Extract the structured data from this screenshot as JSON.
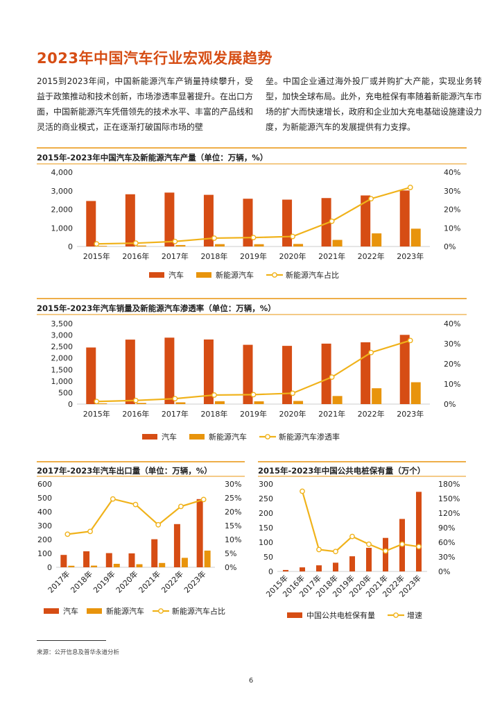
{
  "page": {
    "title": "2023年中国汽车行业宏观发展趋势",
    "intro_left": "2015到2023年间，中国新能源汽车产销量持续攀升，受益于政策推动和技术创新，市场渗透率显著提升。在出口方面，中国新能源汽车凭借领先的技术水平、丰富的产品线和灵活的商业模式，正在逐渐打破国际市场的壁",
    "intro_right": "垒。中国企业通过海外投厂或并购扩大产能，实现业务转型，加快全球布局。此外，充电桩保有率随着新能源汽车市场的扩大而快速增长，政府和企业加大充电基础设施建设力度，为新能源汽车的发展提供有力支撑。",
    "source": "来源：公开信息及普华永道分析",
    "page_number": "6"
  },
  "colors": {
    "bar_primary": "#d64d14",
    "bar_secondary": "#e8940c",
    "line": "#f0b21a",
    "accent_rule": "#e8940c"
  },
  "chart_data": [
    {
      "id": "chart1",
      "type": "bar",
      "title": "2015年-2023年中国汽车及新能源汽车产量（单位：万辆，%）",
      "categories": [
        "2015年",
        "2016年",
        "2017年",
        "2018年",
        "2019年",
        "2020年",
        "2021年",
        "2022年",
        "2023年"
      ],
      "y_ticks": [
        "4,000",
        "3,000",
        "2,000",
        "1,000",
        "0"
      ],
      "y2_ticks": [
        "40%",
        "30%",
        "20%",
        "10%",
        "0%"
      ],
      "ylim": [
        0,
        4000
      ],
      "y2lim": [
        0,
        40
      ],
      "series": [
        {
          "name": "汽车",
          "kind": "bar",
          "values": [
            2450,
            2812,
            2902,
            2781,
            2572,
            2523,
            2608,
            2748,
            3016
          ]
        },
        {
          "name": "新能源汽车",
          "kind": "bar",
          "values": [
            34,
            52,
            79,
            127,
            124,
            137,
            355,
            706,
            959
          ]
        },
        {
          "name": "新能源汽车占比",
          "kind": "line",
          "axis": "right",
          "values": [
            1.4,
            1.8,
            2.7,
            4.5,
            4.8,
            5.4,
            13.6,
            25.7,
            31.8
          ]
        }
      ],
      "legend": "bottom",
      "grid": false
    },
    {
      "id": "chart2",
      "type": "bar",
      "title": "2015年-2023年汽车销量及新能源汽车渗透率（单位：万辆，%）",
      "categories": [
        "2015年",
        "2016年",
        "2017年",
        "2018年",
        "2019年",
        "2020年",
        "2021年",
        "2022年",
        "2023年"
      ],
      "y_ticks": [
        "3,500",
        "3,000",
        "2,500",
        "2,000",
        "1,500",
        "1,000",
        "500",
        "0"
      ],
      "y2_ticks": [
        "40%",
        "30%",
        "20%",
        "10%",
        "0%"
      ],
      "ylim": [
        0,
        3500
      ],
      "y2lim": [
        0,
        40
      ],
      "series": [
        {
          "name": "汽车",
          "kind": "bar",
          "values": [
            2460,
            2803,
            2888,
            2808,
            2577,
            2531,
            2628,
            2686,
            3009
          ]
        },
        {
          "name": "新能源汽车",
          "kind": "bar",
          "values": [
            33,
            51,
            77,
            126,
            121,
            137,
            352,
            689,
            950
          ]
        },
        {
          "name": "新能源汽车渗透率",
          "kind": "line",
          "axis": "right",
          "values": [
            1.3,
            1.8,
            2.7,
            4.5,
            4.7,
            5.4,
            13.4,
            25.6,
            31.6
          ]
        }
      ],
      "legend": "bottom",
      "grid": false
    },
    {
      "id": "chart3",
      "type": "bar",
      "title": "2017年-2023年汽车出口量（单位：万辆，%）",
      "categories": [
        "2017年",
        "2018年",
        "2019年",
        "2020年",
        "2021年",
        "2022年",
        "2023年"
      ],
      "y_ticks": [
        "600",
        "500",
        "400",
        "300",
        "200",
        "100",
        "0"
      ],
      "y2_ticks": [
        "30%",
        "25%",
        "20%",
        "15%",
        "10%",
        "5%",
        "0%"
      ],
      "ylim": [
        0,
        600
      ],
      "y2lim": [
        0,
        30
      ],
      "series": [
        {
          "name": "汽车",
          "kind": "bar",
          "values": [
            89,
            115,
            102,
            100,
            202,
            311,
            491
          ]
        },
        {
          "name": "新能源汽车",
          "kind": "bar",
          "values": [
            11,
            12,
            25,
            22,
            31,
            68,
            120
          ]
        },
        {
          "name": "新能源汽车占比",
          "kind": "line",
          "axis": "right",
          "values": [
            11.9,
            12.9,
            24.6,
            22.6,
            15.3,
            21.9,
            24.4
          ]
        }
      ],
      "legend": "bottom",
      "grid": false
    },
    {
      "id": "chart4",
      "type": "bar",
      "title": "2015年-2023年中国公共电桩保有量（万个）",
      "categories": [
        "2015年",
        "2016年",
        "2017年",
        "2018年",
        "2019年",
        "2020年",
        "2021年",
        "2022年",
        "2023年"
      ],
      "y_ticks": [
        "300",
        "250",
        "200",
        "150",
        "100",
        "50",
        "0"
      ],
      "y2_ticks": [
        "180%",
        "150%",
        "120%",
        "90%",
        "60%",
        "30%",
        "0%"
      ],
      "ylim": [
        0,
        300
      ],
      "y2lim": [
        0,
        180
      ],
      "series": [
        {
          "name": "中国公共电桩保有量",
          "kind": "bar",
          "values": [
            5,
            14,
            21,
            30,
            52,
            81,
            115,
            180,
            273
          ]
        },
        {
          "name": "增速",
          "kind": "line",
          "axis": "right",
          "values": [
            null,
            165,
            45,
            41,
            72,
            56,
            42,
            56,
            51
          ]
        }
      ],
      "legend": "bottom",
      "grid": false
    }
  ]
}
